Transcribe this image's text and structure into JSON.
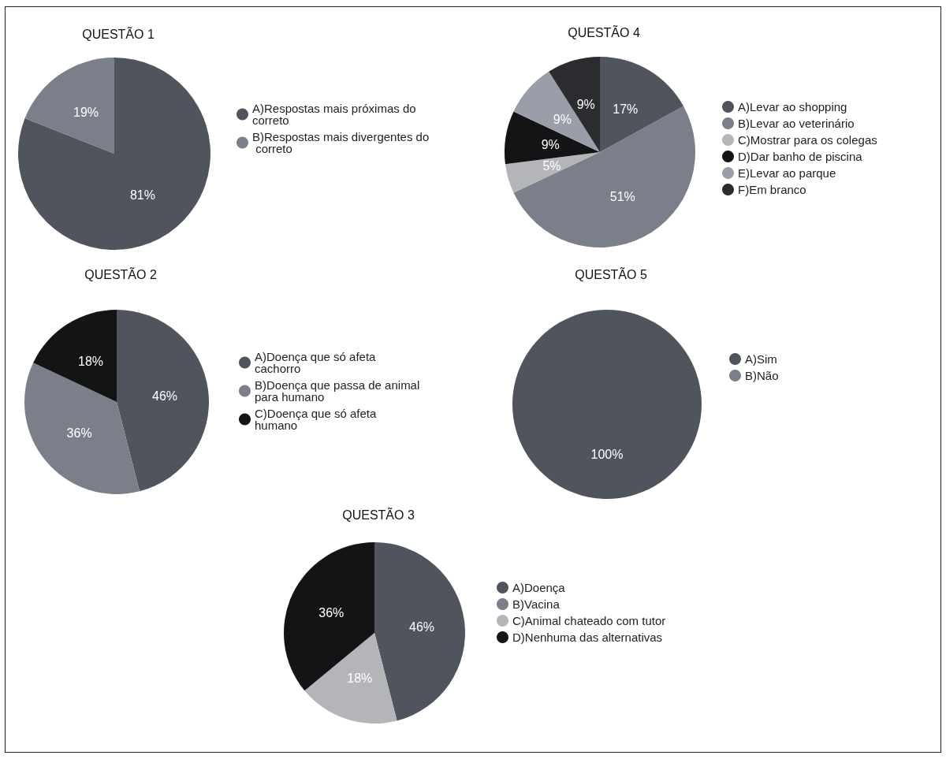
{
  "chart_data": [
    {
      "type": "pie",
      "title": "QUESTÃO 1",
      "categories": [
        "A)Respostas mais próximas do correto",
        "B)Respostas mais divergentes do correto"
      ],
      "values": [
        81,
        19
      ],
      "colors": [
        "#50555d",
        "#7a7f89"
      ],
      "value_labels": [
        "81%",
        "19%"
      ],
      "legend": "right"
    },
    {
      "type": "pie",
      "title": "QUESTÃO 4",
      "categories": [
        "A)Levar ao shopping",
        "B)Levar ao veterinário",
        "C)Mostrar para os colegas",
        "D)Dar banho de piscina",
        "E)Levar ao parque",
        "F)Em branco"
      ],
      "values": [
        17,
        51,
        5,
        9,
        9,
        9
      ],
      "colors": [
        "#50555d",
        "#7a7f89",
        "#b3b5b8",
        "#141417",
        "#9a9ea8",
        "#2b2c30"
      ],
      "value_labels": [
        "17%",
        "51%",
        "5%",
        "9%",
        "9%",
        "9%"
      ],
      "legend": "right"
    },
    {
      "type": "pie",
      "title": "QUESTÃO 2",
      "categories": [
        "A)Doença que só afeta cachorro",
        "B)Doença que passa de animal para humano",
        "C)Doença que só afeta humano"
      ],
      "values": [
        46,
        36,
        18
      ],
      "colors": [
        "#50555d",
        "#7a7f89",
        "#141417"
      ],
      "value_labels": [
        "46%",
        "36%",
        "18%"
      ],
      "legend": "right"
    },
    {
      "type": "pie",
      "title": "QUESTÃO 5",
      "categories": [
        "A)Sim",
        "B)Não"
      ],
      "values": [
        100,
        0
      ],
      "colors": [
        "#50555d",
        "#7a7f89"
      ],
      "value_labels": [
        "100%",
        null
      ],
      "legend": "right"
    },
    {
      "type": "pie",
      "title": "QUESTÃO 3",
      "categories": [
        "A)Doença",
        "B)Vacina",
        "C)Animal chateado com tutor",
        "D)Nenhuma das alternativas"
      ],
      "values": [
        46,
        0,
        18,
        36
      ],
      "colors": [
        "#50555d",
        "#7a7f89",
        "#b3b5b8",
        "#141417"
      ],
      "value_labels": [
        "46%",
        null,
        "18%",
        "36%"
      ],
      "legend": "right"
    }
  ]
}
